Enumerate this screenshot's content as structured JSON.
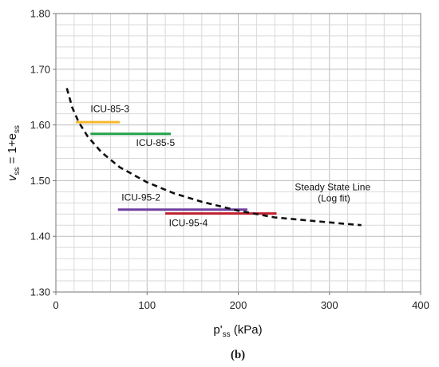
{
  "chart_data": {
    "type": "line",
    "xlabel": {
      "main": "p'",
      "sub": "ss",
      "rest": " (kPa)"
    },
    "ylabel": {
      "main": "v",
      "sub": "ss",
      "mid": " = 1+e",
      "sub2": "ss"
    },
    "xlim": [
      0,
      400
    ],
    "ylim": [
      1.3,
      1.8
    ],
    "x_ticks": [
      "0",
      "100",
      "200",
      "300",
      "400"
    ],
    "y_ticks": [
      "1.30",
      "1.40",
      "1.50",
      "1.60",
      "1.70",
      "1.80"
    ],
    "grid": true,
    "caption": "(b)",
    "series": [
      {
        "name": "ICU-85-3",
        "color": "#f5b82e",
        "x": [
          22,
          70
        ],
        "y": [
          1.605,
          1.605
        ],
        "label_at": [
          38,
          1.623
        ]
      },
      {
        "name": "ICU-85-5",
        "color": "#22a24a",
        "x": [
          38,
          126
        ],
        "y": [
          1.584,
          1.584
        ],
        "label_at": [
          88,
          1.562
        ]
      },
      {
        "name": "ICU-95-2",
        "color": "#7040a0",
        "x": [
          68,
          210
        ],
        "y": [
          1.448,
          1.448
        ],
        "label_at": [
          72,
          1.464
        ]
      },
      {
        "name": "ICU-95-4",
        "color": "#c02030",
        "x": [
          120,
          242
        ],
        "y": [
          1.441,
          1.441
        ],
        "label_at": [
          124,
          1.418
        ]
      }
    ],
    "steady_state_line": {
      "label_line1": "Steady State Line",
      "label_line2": "(Log fit)",
      "color": "#111111",
      "style": "dashed",
      "x": [
        12,
        18,
        25,
        35,
        50,
        70,
        100,
        130,
        160,
        200,
        240,
        280,
        320,
        335
      ],
      "y": [
        1.666,
        1.631,
        1.605,
        1.579,
        1.551,
        1.524,
        1.497,
        1.477,
        1.462,
        1.446,
        1.434,
        1.428,
        1.422,
        1.42
      ],
      "label_at": [
        305,
        1.483
      ]
    }
  }
}
